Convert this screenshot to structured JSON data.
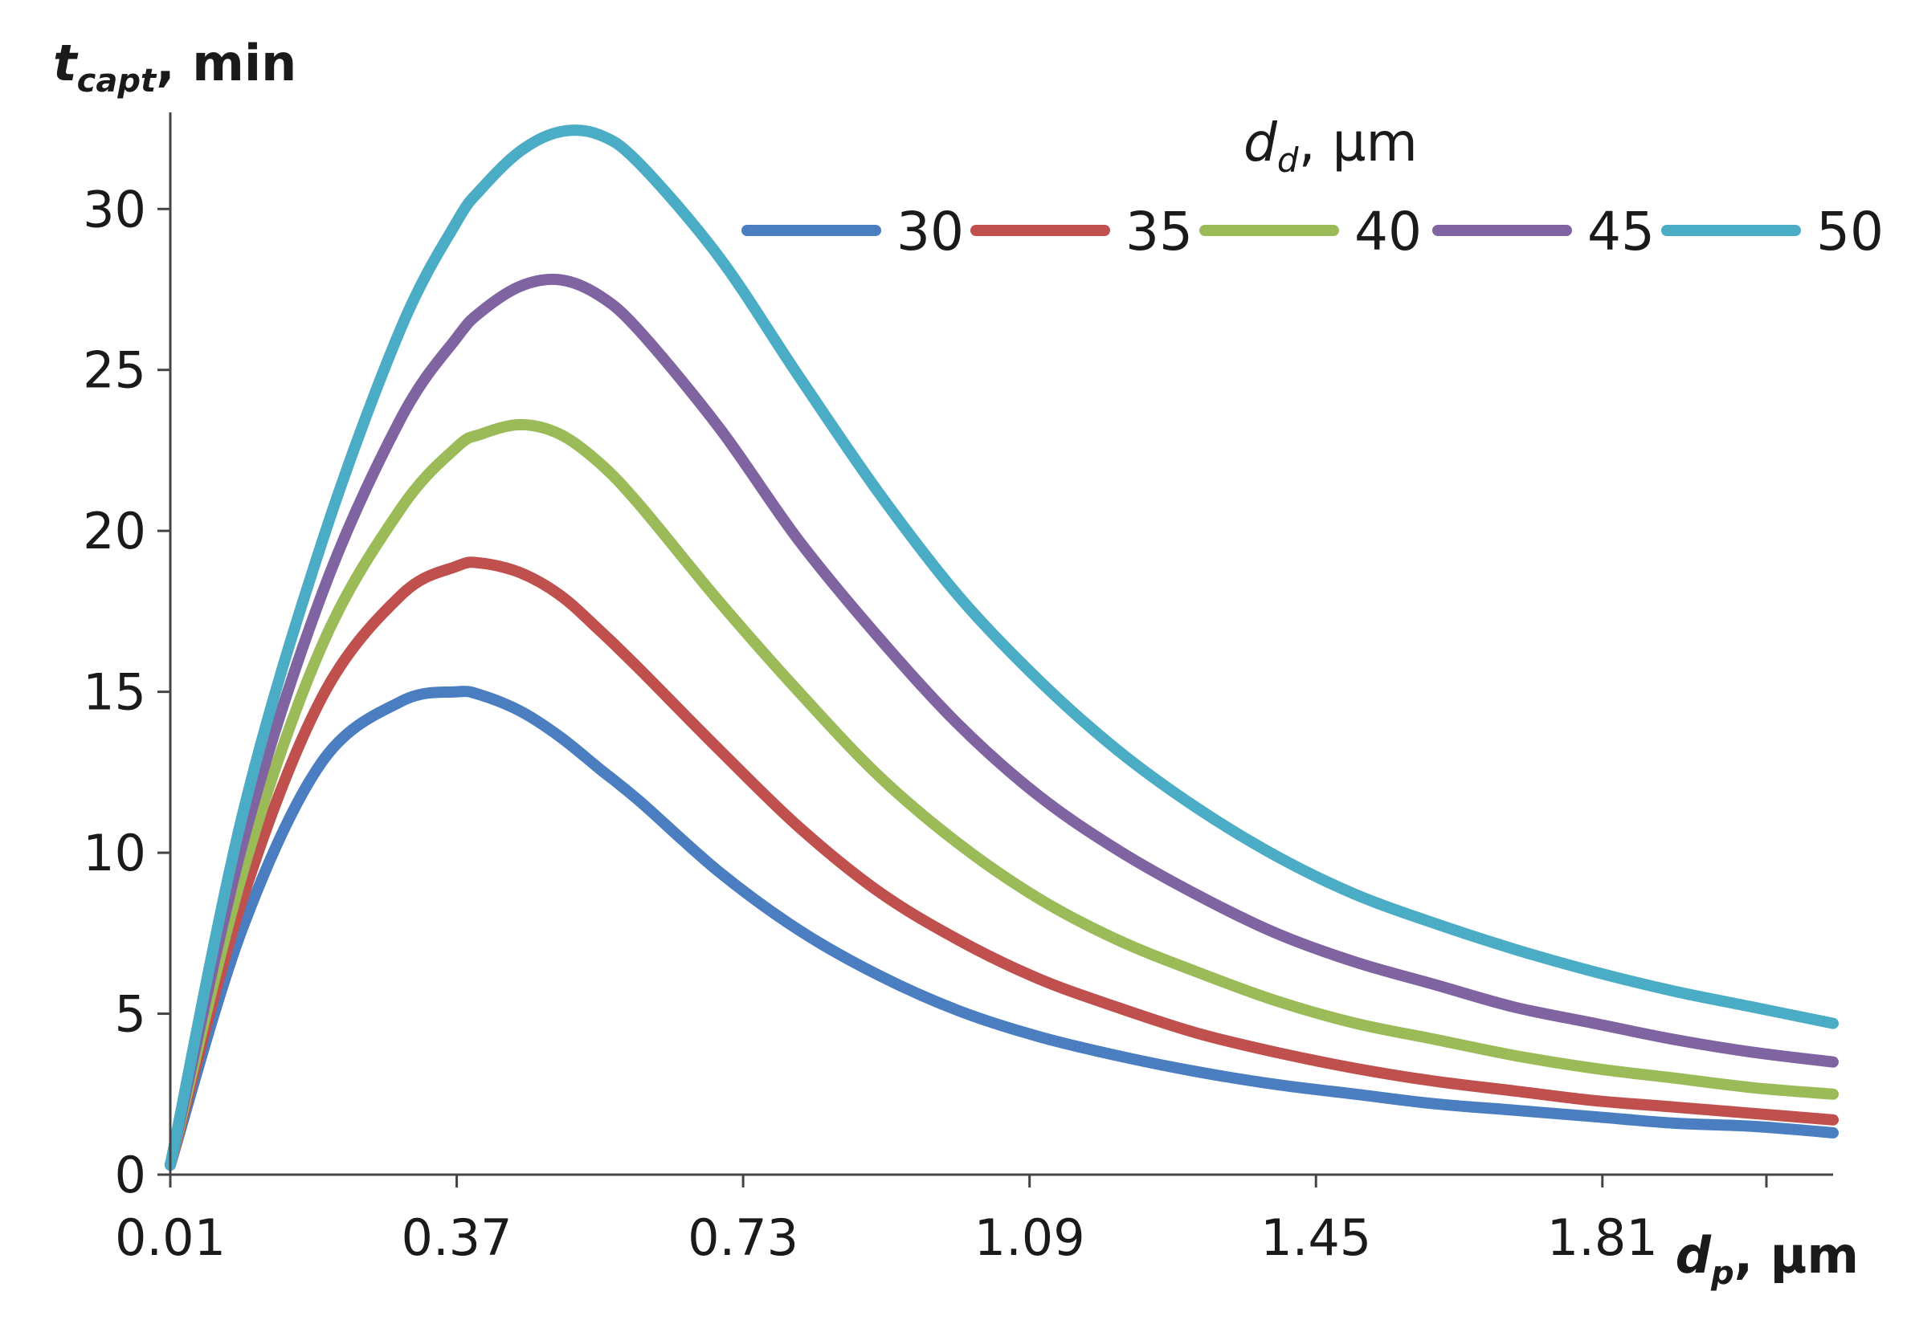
{
  "chart_data": {
    "type": "line",
    "ylabel": {
      "main": "t",
      "sub": "capt",
      "unit": ", min"
    },
    "xlabel": {
      "main": "d",
      "sub": "p",
      "unit": ", µm"
    },
    "legend_title": {
      "main": "d",
      "sub": "d",
      "unit": ", µm"
    },
    "legend_position": "top-right",
    "xlim": [
      0.01,
      2.1
    ],
    "ylim": [
      0,
      33
    ],
    "x_ticks": [
      0.01,
      0.37,
      0.73,
      1.09,
      1.45,
      1.81
    ],
    "x_tick_labels": [
      "0.01",
      "0.37",
      "0.73",
      "1.09",
      "1.45",
      "1.81"
    ],
    "y_ticks": [
      0,
      5,
      10,
      15,
      20,
      25,
      30
    ],
    "y_tick_labels": [
      "0",
      "5",
      "10",
      "15",
      "20",
      "25",
      "30"
    ],
    "x": [
      0.01,
      0.1,
      0.2,
      0.3,
      0.37,
      0.4,
      0.45,
      0.5,
      0.55,
      0.6,
      0.7,
      0.8,
      0.9,
      1.0,
      1.1,
      1.2,
      1.3,
      1.4,
      1.5,
      1.6,
      1.7,
      1.8,
      1.9,
      2.0,
      2.1
    ],
    "series": [
      {
        "name": "30",
        "color": "#4a7ec0",
        "values": [
          0.3,
          7.6,
          12.8,
          14.7,
          15.0,
          14.9,
          14.4,
          13.6,
          12.6,
          11.6,
          9.4,
          7.6,
          6.2,
          5.1,
          4.3,
          3.7,
          3.2,
          2.8,
          2.5,
          2.2,
          2.0,
          1.8,
          1.6,
          1.5,
          1.3
        ]
      },
      {
        "name": "35",
        "color": "#c0504d",
        "values": [
          0.3,
          8.5,
          14.8,
          18.0,
          18.9,
          19.0,
          18.7,
          18.0,
          16.9,
          15.7,
          13.2,
          10.8,
          8.8,
          7.3,
          6.1,
          5.2,
          4.4,
          3.8,
          3.3,
          2.9,
          2.6,
          2.3,
          2.1,
          1.9,
          1.7
        ]
      },
      {
        "name": "40",
        "color": "#9bbb59",
        "values": [
          0.3,
          9.3,
          16.4,
          20.7,
          22.6,
          23.0,
          23.3,
          23.0,
          22.1,
          20.8,
          17.8,
          15.0,
          12.4,
          10.3,
          8.6,
          7.3,
          6.3,
          5.4,
          4.7,
          4.2,
          3.7,
          3.3,
          3.0,
          2.7,
          2.5
        ]
      },
      {
        "name": "45",
        "color": "#8064a2",
        "values": [
          0.3,
          10.2,
          18.0,
          23.5,
          26.0,
          26.8,
          27.6,
          27.8,
          27.3,
          26.2,
          23.2,
          19.7,
          16.7,
          14.0,
          11.8,
          10.1,
          8.7,
          7.5,
          6.6,
          5.9,
          5.2,
          4.7,
          4.2,
          3.8,
          3.5
        ]
      },
      {
        "name": "50",
        "color": "#4bacc6",
        "values": [
          0.3,
          11.1,
          19.6,
          26.3,
          29.6,
          30.6,
          31.8,
          32.4,
          32.3,
          31.4,
          28.5,
          24.8,
          21.2,
          18.0,
          15.4,
          13.2,
          11.4,
          9.9,
          8.7,
          7.8,
          7.0,
          6.3,
          5.7,
          5.2,
          4.7
        ]
      }
    ]
  }
}
